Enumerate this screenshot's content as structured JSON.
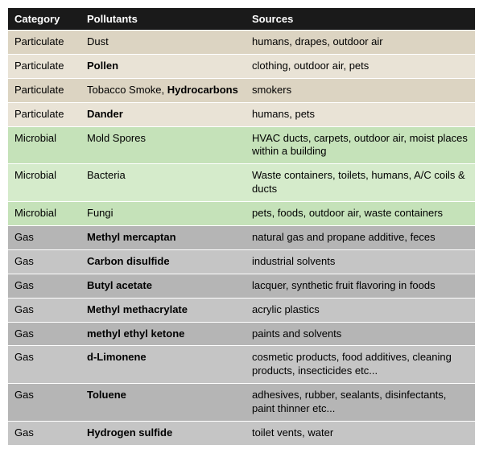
{
  "table": {
    "header_bg": "#1a1a1a",
    "header_fg": "#ffffff",
    "row_border": "#ffffff",
    "columns": [
      "Category",
      "Pollutants",
      "Sources"
    ],
    "groups": {
      "Particulate": {
        "bg_even": "#dcd4c2",
        "bg_odd": "#e9e3d6"
      },
      "Microbial": {
        "bg_even": "#c5e2b9",
        "bg_odd": "#d5ebcb"
      },
      "Gas": {
        "bg_even": "#b5b5b5",
        "bg_odd": "#c5c5c5"
      }
    },
    "rows": [
      {
        "category": "Particulate",
        "pollutant_plain": "Dust",
        "pollutant_bold": "",
        "sources": "humans, drapes, outdoor air"
      },
      {
        "category": "Particulate",
        "pollutant_plain": "",
        "pollutant_bold": "Pollen",
        "sources": "clothing, outdoor air, pets"
      },
      {
        "category": "Particulate",
        "pollutant_plain": "Tobacco Smoke, ",
        "pollutant_bold": "Hydrocarbons",
        "sources": "smokers"
      },
      {
        "category": "Particulate",
        "pollutant_plain": "",
        "pollutant_bold": "Dander",
        "sources": "humans, pets"
      },
      {
        "category": "Microbial",
        "pollutant_plain": "Mold Spores",
        "pollutant_bold": "",
        "sources": "HVAC ducts, carpets, outdoor air, moist places within a building"
      },
      {
        "category": "Microbial",
        "pollutant_plain": "Bacteria",
        "pollutant_bold": "",
        "sources": "Waste containers, toilets, humans, A/C coils & ducts"
      },
      {
        "category": "Microbial",
        "pollutant_plain": "Fungi",
        "pollutant_bold": "",
        "sources": "pets, foods, outdoor air, waste containers"
      },
      {
        "category": "Gas",
        "pollutant_plain": "",
        "pollutant_bold": "Methyl mercaptan",
        "sources": "natural gas and propane additive, feces"
      },
      {
        "category": "Gas",
        "pollutant_plain": "",
        "pollutant_bold": "Carbon disulfide",
        "sources": "industrial solvents"
      },
      {
        "category": "Gas",
        "pollutant_plain": "",
        "pollutant_bold": "Butyl acetate",
        "sources": "lacquer, synthetic fruit flavoring in foods"
      },
      {
        "category": "Gas",
        "pollutant_plain": "",
        "pollutant_bold": "Methyl methacrylate",
        "sources": "acrylic plastics"
      },
      {
        "category": "Gas",
        "pollutant_plain": "",
        "pollutant_bold": "methyl ethyl ketone",
        "sources": "paints and solvents"
      },
      {
        "category": "Gas",
        "pollutant_plain": "",
        "pollutant_bold": "d-Limonene",
        "sources": "cosmetic products, food additives, cleaning products, insecticides etc..."
      },
      {
        "category": "Gas",
        "pollutant_plain": "",
        "pollutant_bold": "Toluene",
        "sources": "adhesives, rubber, sealants, disinfectants, paint thinner etc..."
      },
      {
        "category": "Gas",
        "pollutant_plain": "",
        "pollutant_bold": "Hydrogen sulfide",
        "sources": "toilet vents, water"
      }
    ]
  }
}
